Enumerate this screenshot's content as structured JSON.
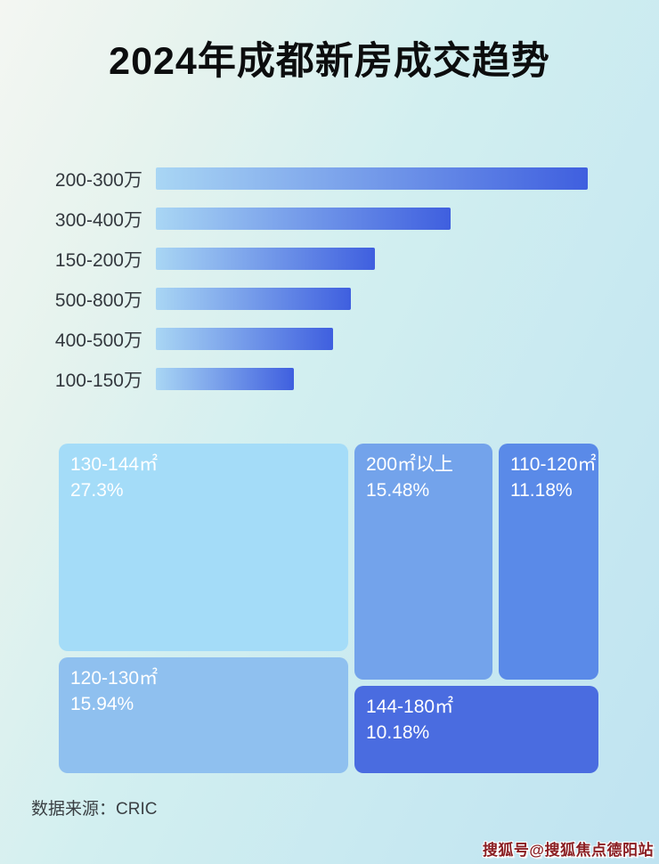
{
  "page": {
    "title": "2024年成都新房成交趋势",
    "source_label": "数据来源：CRIC",
    "watermark": "搜狐号@搜狐焦点德阳站"
  },
  "chart_data": [
    {
      "type": "bar",
      "orientation": "horizontal",
      "categories": [
        "200-300万",
        "300-400万",
        "150-200万",
        "500-800万",
        "400-500万",
        "100-150万"
      ],
      "values": [
        100,
        68.2,
        50.7,
        45.2,
        41.0,
        32.0
      ],
      "values_are_relative_percent_of_longest_bar": true,
      "bar_gradient": {
        "from": "#a9d6f4",
        "to": "#3f5fdf"
      },
      "label_color": "#33383e"
    },
    {
      "type": "treemap",
      "items": [
        {
          "label": "130-144㎡",
          "value": 27.3,
          "value_label": "27.3%",
          "color": "#a4dcf8"
        },
        {
          "label": "120-130㎡",
          "value": 15.94,
          "value_label": "15.94%",
          "color": "#8fc0ef"
        },
        {
          "label": "200㎡以上",
          "value": 15.48,
          "value_label": "15.48%",
          "color": "#73a3eb"
        },
        {
          "label": "110-120㎡",
          "value": 11.18,
          "value_label": "11.18%",
          "color": "#5a8ae8"
        },
        {
          "label": "144-180㎡",
          "value": 10.18,
          "value_label": "10.18%",
          "color": "#4a6ce0"
        }
      ],
      "text_color": "#ffffff"
    }
  ]
}
